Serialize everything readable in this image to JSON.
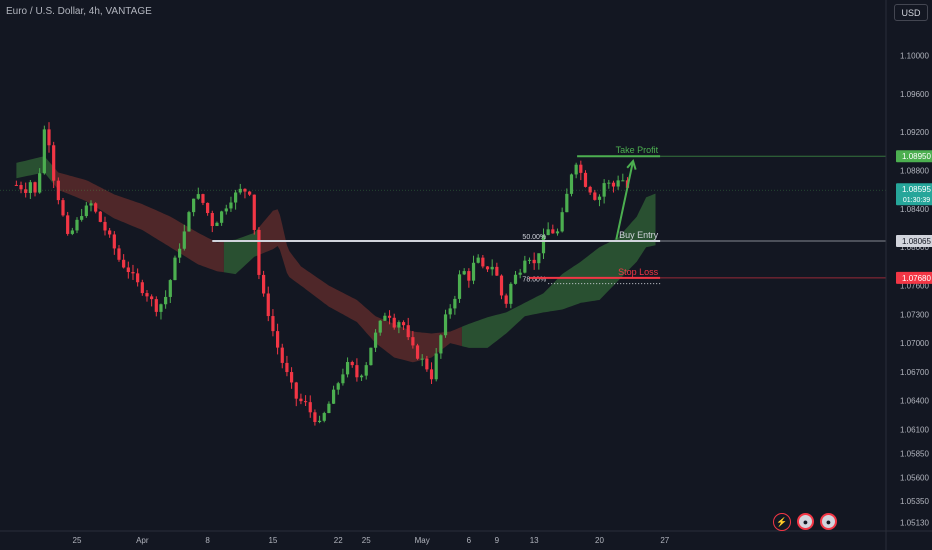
{
  "header": {
    "title": "Euro / U.S. Dollar, 4h, VANTAGE",
    "currency": "USD"
  },
  "chart_data": {
    "type": "candlestick",
    "ylim": [
      1.0505,
      1.1035
    ],
    "y_ticks": [
      1.1,
      1.096,
      1.092,
      1.088,
      1.084,
      1.08,
      1.076,
      1.073,
      1.07,
      1.067,
      1.064,
      1.061,
      1.0585,
      1.056,
      1.0535,
      1.0513
    ],
    "x_ticks": [
      {
        "label": "25",
        "x": 0.0
      },
      {
        "label": "Apr",
        "x": 7.0
      },
      {
        "label": "8",
        "x": 14.0
      },
      {
        "label": "15",
        "x": 21.0
      },
      {
        "label": "22",
        "x": 28.0
      },
      {
        "label": "25",
        "x": 31.0
      },
      {
        "label": "May",
        "x": 37.0
      },
      {
        "label": "6",
        "x": 42.0
      },
      {
        "label": "9",
        "x": 45.0
      },
      {
        "label": "13",
        "x": 49.0
      },
      {
        "label": "20",
        "x": 56.0
      },
      {
        "label": "27",
        "x": 63.0
      }
    ],
    "price_path": [
      [
        -6.5,
        1.0865
      ],
      [
        -5.5,
        1.086
      ],
      [
        -4.8,
        1.0872
      ],
      [
        -4.3,
        1.0845
      ],
      [
        -3.6,
        1.0925
      ],
      [
        -3.0,
        1.091
      ],
      [
        -2.4,
        1.0865
      ],
      [
        -1.8,
        1.0845
      ],
      [
        -1.0,
        1.081
      ],
      [
        -0.3,
        1.082
      ],
      [
        0.4,
        1.0835
      ],
      [
        1.5,
        1.0845
      ],
      [
        2.6,
        1.0825
      ],
      [
        3.6,
        1.0808
      ],
      [
        4.6,
        1.0785
      ],
      [
        5.6,
        1.0775
      ],
      [
        6.6,
        1.076
      ],
      [
        7.6,
        1.075
      ],
      [
        8.6,
        1.0735
      ],
      [
        9.6,
        1.075
      ],
      [
        10.6,
        1.079
      ],
      [
        11.6,
        1.0818
      ],
      [
        12.6,
        1.0858
      ],
      [
        13.6,
        1.0845
      ],
      [
        14.6,
        1.0822
      ],
      [
        15.6,
        1.0838
      ],
      [
        16.6,
        1.0852
      ],
      [
        17.6,
        1.086
      ],
      [
        18.6,
        1.0858
      ],
      [
        19.1,
        1.081
      ],
      [
        19.6,
        1.0762
      ],
      [
        20.4,
        1.0735
      ],
      [
        21.2,
        1.0705
      ],
      [
        22.0,
        1.068
      ],
      [
        22.8,
        1.066
      ],
      [
        23.6,
        1.064
      ],
      [
        24.4,
        1.0638
      ],
      [
        25.2,
        1.0625
      ],
      [
        26.0,
        1.0615
      ],
      [
        26.8,
        1.0632
      ],
      [
        27.6,
        1.065
      ],
      [
        28.4,
        1.0668
      ],
      [
        29.2,
        1.068
      ],
      [
        30.0,
        1.0665
      ],
      [
        30.8,
        1.0672
      ],
      [
        31.6,
        1.07
      ],
      [
        32.4,
        1.0718
      ],
      [
        33.2,
        1.0735
      ],
      [
        34.0,
        1.072
      ],
      [
        34.8,
        1.0725
      ],
      [
        35.6,
        1.07
      ],
      [
        36.4,
        1.0688
      ],
      [
        37.2,
        1.068
      ],
      [
        38.0,
        1.0665
      ],
      [
        38.8,
        1.07
      ],
      [
        39.6,
        1.073
      ],
      [
        40.4,
        1.0745
      ],
      [
        41.2,
        1.0778
      ],
      [
        42.0,
        1.0768
      ],
      [
        42.8,
        1.079
      ],
      [
        43.6,
        1.0775
      ],
      [
        44.4,
        1.0783
      ],
      [
        45.2,
        1.0765
      ],
      [
        45.8,
        1.0735
      ],
      [
        46.6,
        1.0765
      ],
      [
        47.4,
        1.0775
      ],
      [
        48.2,
        1.0795
      ],
      [
        49.0,
        1.0782
      ],
      [
        49.8,
        1.0805
      ],
      [
        50.6,
        1.082
      ],
      [
        51.4,
        1.0812
      ],
      [
        52.2,
        1.084
      ],
      [
        53.0,
        1.0878
      ],
      [
        53.6,
        1.0892
      ],
      [
        54.2,
        1.087
      ],
      [
        55.0,
        1.086
      ],
      [
        55.8,
        1.0848
      ],
      [
        56.6,
        1.087
      ],
      [
        57.4,
        1.0862
      ],
      [
        58.2,
        1.0875
      ],
      [
        59.0,
        1.0862
      ]
    ],
    "cloud": {
      "upper": [
        [
          -6.5,
          1.0888
        ],
        [
          -3.5,
          1.0895
        ],
        [
          -2.0,
          1.0878
        ],
        [
          1.0,
          1.087
        ],
        [
          4.0,
          1.0855
        ],
        [
          7.0,
          1.0845
        ],
        [
          10.0,
          1.0832
        ],
        [
          13.0,
          1.0815
        ],
        [
          15.0,
          1.0805
        ],
        [
          17.0,
          1.0808
        ],
        [
          19.0,
          1.0815
        ],
        [
          21.0,
          1.0838
        ],
        [
          21.6,
          1.084
        ],
        [
          22.6,
          1.0798
        ],
        [
          24.0,
          1.078
        ],
        [
          27.0,
          1.076
        ],
        [
          30.0,
          1.0745
        ],
        [
          32.0,
          1.0728
        ],
        [
          34.0,
          1.072
        ],
        [
          36.0,
          1.0712
        ],
        [
          38.0,
          1.071
        ],
        [
          40.0,
          1.0712
        ],
        [
          42.0,
          1.072
        ],
        [
          44.0,
          1.0727
        ],
        [
          46.0,
          1.0732
        ],
        [
          48.0,
          1.0742
        ],
        [
          50.0,
          1.0752
        ],
        [
          52.0,
          1.0772
        ],
        [
          54.0,
          1.0785
        ],
        [
          56.0,
          1.08
        ],
        [
          58.0,
          1.081
        ],
        [
          60.0,
          1.0832
        ],
        [
          61.0,
          1.0852
        ],
        [
          62.0,
          1.0856
        ]
      ],
      "lower": [
        [
          -6.5,
          1.0872
        ],
        [
          -3.5,
          1.0878
        ],
        [
          -2.0,
          1.086
        ],
        [
          1.0,
          1.0848
        ],
        [
          4.0,
          1.083
        ],
        [
          7.0,
          1.0818
        ],
        [
          10.0,
          1.08
        ],
        [
          13.0,
          1.0782
        ],
        [
          15.0,
          1.0775
        ],
        [
          17.0,
          1.0772
        ],
        [
          19.0,
          1.079
        ],
        [
          21.0,
          1.0798
        ],
        [
          21.6,
          1.0802
        ],
        [
          22.6,
          1.077
        ],
        [
          24.0,
          1.076
        ],
        [
          27.0,
          1.0738
        ],
        [
          30.0,
          1.0722
        ],
        [
          32.0,
          1.07
        ],
        [
          34.0,
          1.0685
        ],
        [
          36.0,
          1.068
        ],
        [
          38.0,
          1.0685
        ],
        [
          40.0,
          1.07
        ],
        [
          42.0,
          1.0695
        ],
        [
          44.0,
          1.0695
        ],
        [
          46.0,
          1.071
        ],
        [
          48.0,
          1.0728
        ],
        [
          50.0,
          1.0732
        ],
        [
          52.0,
          1.0735
        ],
        [
          54.0,
          1.0742
        ],
        [
          56.0,
          1.0745
        ],
        [
          58.0,
          1.0765
        ],
        [
          60.0,
          1.0785
        ],
        [
          61.0,
          1.08
        ],
        [
          62.0,
          1.0802
        ]
      ]
    },
    "levels": [
      {
        "name": "take-profit",
        "label": "Take Profit",
        "price": 1.0895,
        "price_label": "1.08950",
        "color": "#4caf50",
        "x_start": 53.6,
        "x_end": 62.5
      },
      {
        "name": "buy-entry",
        "label": "Buy Entry",
        "price": 1.08065,
        "price_label": "1.08065",
        "color": "#d1d4dc",
        "x_start": 14.5,
        "x_end": 62.5
      },
      {
        "name": "stop-loss",
        "label": "Stop Loss",
        "price": 1.0768,
        "price_label": "1.07680",
        "color": "#f23645",
        "x_start": 48.5,
        "x_end": 62.5
      }
    ],
    "fib_levels": [
      {
        "label": "50.00%",
        "price": 1.08065,
        "x_start": 47.5,
        "x_end": 62.5
      },
      {
        "label": "78.60%",
        "price": 1.0762,
        "x_start": 47.5,
        "x_end": 62.5
      }
    ],
    "current_price": {
      "label": "1.08595",
      "countdown": "01:30:39",
      "price": 1.08595
    },
    "arrow": {
      "from": [
        57.8,
        1.0808
      ],
      "to": [
        59.6,
        1.089
      ],
      "color": "#4caf50"
    }
  },
  "colors": {
    "background": "#131722",
    "up": "#4caf50",
    "down": "#f23645",
    "cloud_bull": "#2e5a34",
    "cloud_bear": "#5a2a2a",
    "axis_text": "#b2b5be"
  },
  "icons": [
    "flash-icon",
    "flag-icon",
    "flag-icon"
  ]
}
